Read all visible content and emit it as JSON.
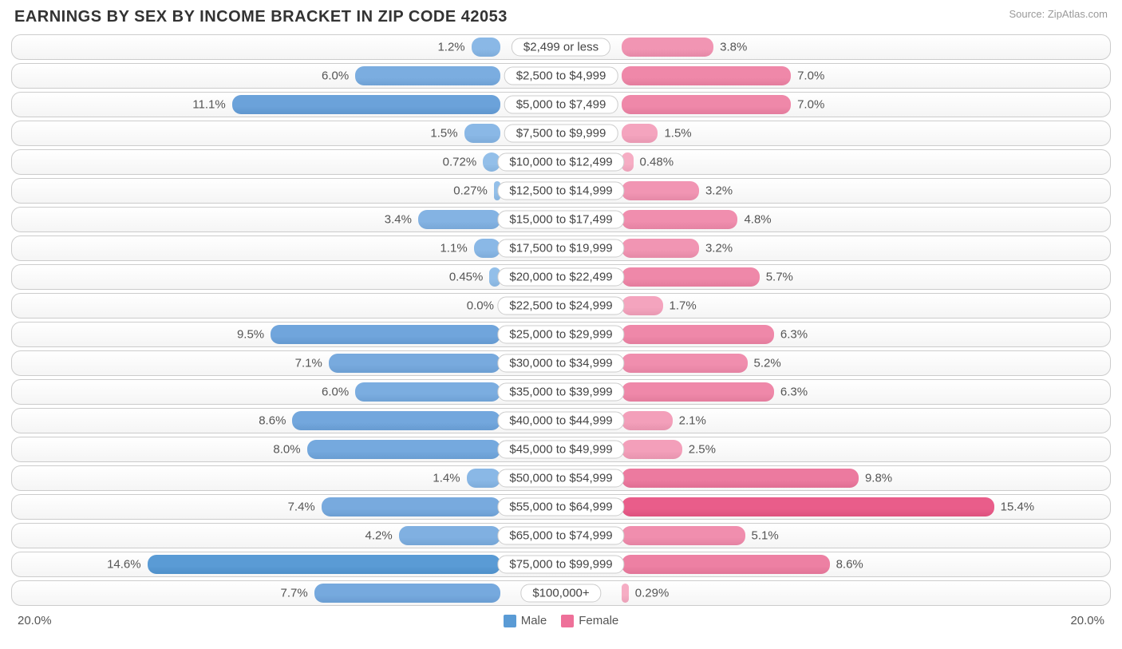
{
  "header": {
    "title": "EARNINGS BY SEX BY INCOME BRACKET IN ZIP CODE 42053",
    "source": "Source: ZipAtlas.com"
  },
  "chart": {
    "type": "diverging-bar",
    "axis_max": 20.0,
    "axis_label_left": "20.0%",
    "axis_label_right": "20.0%",
    "male_color_hover": "#5a9bd5",
    "female_color_hover": "#e95d8a",
    "row_border_color": "#cccccc",
    "background_color": "#ffffff",
    "label_fontsize": 15,
    "title_fontsize": 20,
    "rows": [
      {
        "label": "$2,499 or less",
        "male": 1.2,
        "male_label": "1.2%",
        "female": 3.8,
        "female_label": "3.8%",
        "male_color": "#8ab8e6",
        "female_color": "#f195b3"
      },
      {
        "label": "$2,500 to $4,999",
        "male": 6.0,
        "male_label": "6.0%",
        "female": 7.0,
        "female_label": "7.0%",
        "male_color": "#7bade0",
        "female_color": "#ef88a9"
      },
      {
        "label": "$5,000 to $7,499",
        "male": 11.1,
        "male_label": "11.1%",
        "female": 7.0,
        "female_label": "7.0%",
        "male_color": "#6ba2da",
        "female_color": "#ef88a9"
      },
      {
        "label": "$7,500 to $9,999",
        "male": 1.5,
        "male_label": "1.5%",
        "female": 1.5,
        "female_label": "1.5%",
        "male_color": "#8ab8e6",
        "female_color": "#f4a4be"
      },
      {
        "label": "$10,000 to $12,499",
        "male": 0.72,
        "male_label": "0.72%",
        "female": 0.48,
        "female_label": "0.48%",
        "male_color": "#93bfe9",
        "female_color": "#f6adc4"
      },
      {
        "label": "$12,500 to $14,999",
        "male": 0.27,
        "male_label": "0.27%",
        "female": 3.2,
        "female_label": "3.2%",
        "male_color": "#93bfe9",
        "female_color": "#f195b3"
      },
      {
        "label": "$15,000 to $17,499",
        "male": 3.4,
        "male_label": "3.4%",
        "female": 4.8,
        "female_label": "4.8%",
        "male_color": "#84b3e3",
        "female_color": "#f08eae"
      },
      {
        "label": "$17,500 to $19,999",
        "male": 1.1,
        "male_label": "1.1%",
        "female": 3.2,
        "female_label": "3.2%",
        "male_color": "#8ab8e6",
        "female_color": "#f195b3"
      },
      {
        "label": "$20,000 to $22,499",
        "male": 0.45,
        "male_label": "0.45%",
        "female": 5.7,
        "female_label": "5.7%",
        "male_color": "#93bfe9",
        "female_color": "#ef88a9"
      },
      {
        "label": "$22,500 to $24,999",
        "male": 0.0,
        "male_label": "0.0%",
        "female": 1.7,
        "female_label": "1.7%",
        "male_color": "#93bfe9",
        "female_color": "#f4a4be"
      },
      {
        "label": "$25,000 to $29,999",
        "male": 9.5,
        "male_label": "9.5%",
        "female": 6.3,
        "female_label": "6.3%",
        "male_color": "#70a5dc",
        "female_color": "#ef88a9"
      },
      {
        "label": "$30,000 to $34,999",
        "male": 7.1,
        "male_label": "7.1%",
        "female": 5.2,
        "female_label": "5.2%",
        "male_color": "#78aade",
        "female_color": "#f08eae"
      },
      {
        "label": "$35,000 to $39,999",
        "male": 6.0,
        "male_label": "6.0%",
        "female": 6.3,
        "female_label": "6.3%",
        "male_color": "#7bade0",
        "female_color": "#ef88a9"
      },
      {
        "label": "$40,000 to $44,999",
        "male": 8.6,
        "male_label": "8.6%",
        "female": 2.1,
        "female_label": "2.1%",
        "male_color": "#73a7dd",
        "female_color": "#f39fba"
      },
      {
        "label": "$45,000 to $49,999",
        "male": 8.0,
        "male_label": "8.0%",
        "female": 2.5,
        "female_label": "2.5%",
        "male_color": "#75a9de",
        "female_color": "#f39fba"
      },
      {
        "label": "$50,000 to $54,999",
        "male": 1.4,
        "male_label": "1.4%",
        "female": 9.8,
        "female_label": "9.8%",
        "male_color": "#8ab8e6",
        "female_color": "#ec7a9f"
      },
      {
        "label": "$55,000 to $64,999",
        "male": 7.4,
        "male_label": "7.4%",
        "female": 15.4,
        "female_label": "15.4%",
        "male_color": "#78aade",
        "female_color": "#e95d8a"
      },
      {
        "label": "$65,000 to $74,999",
        "male": 4.2,
        "male_label": "4.2%",
        "female": 5.1,
        "female_label": "5.1%",
        "male_color": "#80b0e1",
        "female_color": "#f08eae"
      },
      {
        "label": "$75,000 to $99,999",
        "male": 14.6,
        "male_label": "14.6%",
        "female": 8.6,
        "female_label": "8.6%",
        "male_color": "#5a9bd5",
        "female_color": "#ed80a3"
      },
      {
        "label": "$100,000+",
        "male": 7.7,
        "male_label": "7.7%",
        "female": 0.29,
        "female_label": "0.29%",
        "male_color": "#76a9de",
        "female_color": "#f6adc4"
      }
    ]
  },
  "legend": {
    "male": {
      "label": "Male",
      "color": "#5a9bd5"
    },
    "female": {
      "label": "Female",
      "color": "#ee7099"
    }
  }
}
